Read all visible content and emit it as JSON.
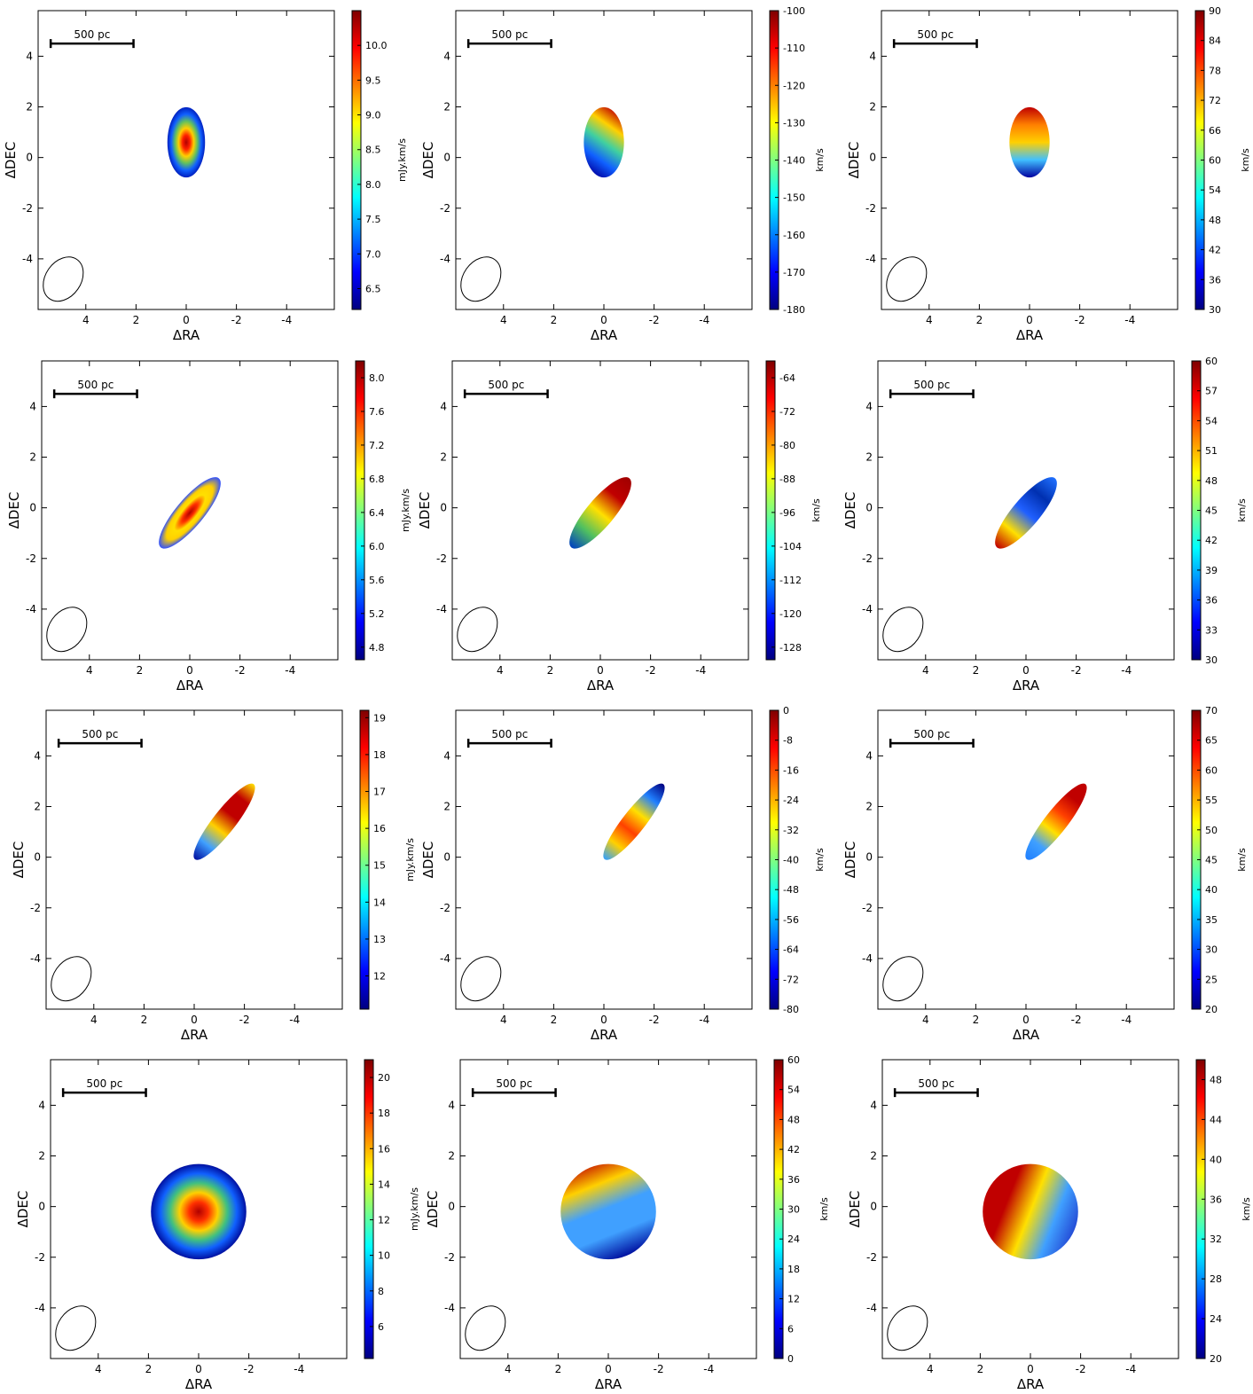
{
  "chart_data": [
    {
      "type": "heatmap",
      "xlabel": "ΔRA",
      "ylabel": "ΔDEC",
      "xlim": [
        5.9,
        -5.9
      ],
      "ylim": [
        -6,
        5.8
      ],
      "xticks": [
        4,
        2,
        0,
        -2,
        -4
      ],
      "yticks": [
        -4,
        -2,
        0,
        2,
        4
      ],
      "scalebar": "500 pc",
      "colorbar": {
        "label": "mJy.km/s",
        "lim": [
          6.2,
          10.5
        ],
        "ticks": [
          6.5,
          {
            "value": 7,
            "label": "7.0"
          },
          7.5,
          {
            "value": 8,
            "label": "8.0"
          },
          8.5,
          {
            "value": 9,
            "label": "9.0"
          },
          9.5,
          {
            "value": 10,
            "label": "10.0"
          }
        ]
      }
    },
    {
      "type": "heatmap",
      "xlabel": "ΔRA",
      "ylabel": "ΔDEC",
      "xlim": [
        5.9,
        -5.9
      ],
      "ylim": [
        -6,
        5.8
      ],
      "xticks": [
        4,
        2,
        0,
        -2,
        -4
      ],
      "yticks": [
        -4,
        -2,
        0,
        2,
        4
      ],
      "scalebar": "500 pc",
      "colorbar": {
        "label": "km/s",
        "lim": [
          -180,
          -100
        ],
        "ticks": [
          -180,
          -170,
          -160,
          -150,
          -140,
          -130,
          -120,
          -110,
          -100
        ]
      }
    },
    {
      "type": "heatmap",
      "xlabel": "ΔRA",
      "ylabel": "ΔDEC",
      "xlim": [
        5.9,
        -5.9
      ],
      "ylim": [
        -6,
        5.8
      ],
      "xticks": [
        4,
        2,
        0,
        -2,
        -4
      ],
      "yticks": [
        -4,
        -2,
        0,
        2,
        4
      ],
      "scalebar": "500 pc",
      "colorbar": {
        "label": "km/s",
        "lim": [
          30,
          90
        ],
        "ticks": [
          30,
          36,
          42,
          48,
          54,
          60,
          66,
          72,
          78,
          84,
          90
        ]
      }
    },
    {
      "type": "heatmap",
      "xlabel": "ΔRA",
      "ylabel": "ΔDEC",
      "xlim": [
        5.9,
        -5.9
      ],
      "ylim": [
        -6,
        5.8
      ],
      "xticks": [
        4,
        2,
        0,
        -2,
        -4
      ],
      "yticks": [
        -4,
        -2,
        0,
        2,
        4
      ],
      "scalebar": "500 pc",
      "colorbar": {
        "label": "mJy.km/s",
        "lim": [
          4.65,
          8.2
        ],
        "ticks": [
          4.8,
          5.2,
          5.6,
          {
            "value": 6,
            "label": "6.0"
          },
          6.4,
          6.8,
          7.2,
          7.6,
          {
            "value": 8,
            "label": "8.0"
          }
        ]
      }
    },
    {
      "type": "heatmap",
      "xlabel": "ΔRA",
      "ylabel": "ΔDEC",
      "xlim": [
        5.9,
        -5.9
      ],
      "ylim": [
        -6,
        5.8
      ],
      "xticks": [
        4,
        2,
        0,
        -2,
        -4
      ],
      "yticks": [
        -4,
        -2,
        0,
        2,
        4
      ],
      "scalebar": "500 pc",
      "colorbar": {
        "label": "km/s",
        "lim": [
          -131,
          -60
        ],
        "ticks": [
          -128,
          -120,
          -112,
          -104,
          -96,
          -88,
          -80,
          -72,
          -64
        ]
      }
    },
    {
      "type": "heatmap",
      "xlabel": "ΔRA",
      "ylabel": "ΔDEC",
      "xlim": [
        5.9,
        -5.9
      ],
      "ylim": [
        -6,
        5.8
      ],
      "xticks": [
        4,
        2,
        0,
        -2,
        -4
      ],
      "yticks": [
        -4,
        -2,
        0,
        2,
        4
      ],
      "scalebar": "500 pc",
      "colorbar": {
        "label": "km/s",
        "lim": [
          30,
          60
        ],
        "ticks": [
          30,
          33,
          36,
          39,
          42,
          45,
          48,
          51,
          54,
          57,
          60
        ]
      }
    },
    {
      "type": "heatmap",
      "xlabel": "ΔRA",
      "ylabel": "ΔDEC",
      "xlim": [
        5.9,
        -5.9
      ],
      "ylim": [
        -6,
        5.8
      ],
      "xticks": [
        4,
        2,
        0,
        -2,
        -4
      ],
      "yticks": [
        -4,
        -2,
        0,
        2,
        4
      ],
      "scalebar": "500 pc",
      "colorbar": {
        "label": "mJy.km/s",
        "lim": [
          11.1,
          19.2
        ],
        "ticks": [
          12,
          13,
          14,
          15,
          16,
          17,
          18,
          19
        ]
      }
    },
    {
      "type": "heatmap",
      "xlabel": "ΔRA",
      "ylabel": "ΔDEC",
      "xlim": [
        5.9,
        -5.9
      ],
      "ylim": [
        -6,
        5.8
      ],
      "xticks": [
        4,
        2,
        0,
        -2,
        -4
      ],
      "yticks": [
        -4,
        -2,
        0,
        2,
        4
      ],
      "scalebar": "500 pc",
      "colorbar": {
        "label": "km/s",
        "lim": [
          -80,
          0
        ],
        "ticks": [
          -80,
          -72,
          -64,
          -56,
          -48,
          -40,
          -32,
          -24,
          -16,
          -8,
          0
        ]
      }
    },
    {
      "type": "heatmap",
      "xlabel": "ΔRA",
      "ylabel": "ΔDEC",
      "xlim": [
        5.9,
        -5.9
      ],
      "ylim": [
        -6,
        5.8
      ],
      "xticks": [
        4,
        2,
        0,
        -2,
        -4
      ],
      "yticks": [
        -4,
        -2,
        0,
        2,
        4
      ],
      "scalebar": "500 pc",
      "colorbar": {
        "label": "km/s",
        "lim": [
          20,
          70
        ],
        "ticks": [
          20,
          25,
          30,
          35,
          40,
          45,
          50,
          55,
          60,
          65,
          70
        ]
      }
    },
    {
      "type": "heatmap",
      "xlabel": "ΔRA",
      "ylabel": "ΔDEC",
      "xlim": [
        5.9,
        -5.9
      ],
      "ylim": [
        -6,
        5.8
      ],
      "xticks": [
        4,
        2,
        0,
        -2,
        -4
      ],
      "yticks": [
        -4,
        -2,
        0,
        2,
        4
      ],
      "scalebar": "500 pc",
      "colorbar": {
        "label": "mJy.km/s",
        "lim": [
          4.2,
          21
        ],
        "ticks": [
          6,
          8,
          10,
          12,
          14,
          16,
          18,
          20
        ]
      }
    },
    {
      "type": "heatmap",
      "xlabel": "ΔRA",
      "ylabel": "ΔDEC",
      "xlim": [
        5.9,
        -5.9
      ],
      "ylim": [
        -6,
        5.8
      ],
      "xticks": [
        4,
        2,
        0,
        -2,
        -4
      ],
      "yticks": [
        -4,
        -2,
        0,
        2,
        4
      ],
      "scalebar": "500 pc",
      "colorbar": {
        "label": "km/s",
        "lim": [
          0,
          60
        ],
        "ticks": [
          0,
          6,
          12,
          18,
          24,
          30,
          36,
          42,
          48,
          54,
          60
        ]
      }
    },
    {
      "type": "heatmap",
      "xlabel": "ΔRA",
      "ylabel": "ΔDEC",
      "xlim": [
        5.9,
        -5.9
      ],
      "ylim": [
        -6,
        5.8
      ],
      "xticks": [
        4,
        2,
        0,
        -2,
        -4
      ],
      "yticks": [
        -4,
        -2,
        0,
        2,
        4
      ],
      "scalebar": "500 pc",
      "colorbar": {
        "label": "km/s",
        "lim": [
          20,
          50
        ],
        "ticks": [
          20,
          24,
          28,
          32,
          36,
          40,
          44,
          48
        ]
      }
    }
  ]
}
